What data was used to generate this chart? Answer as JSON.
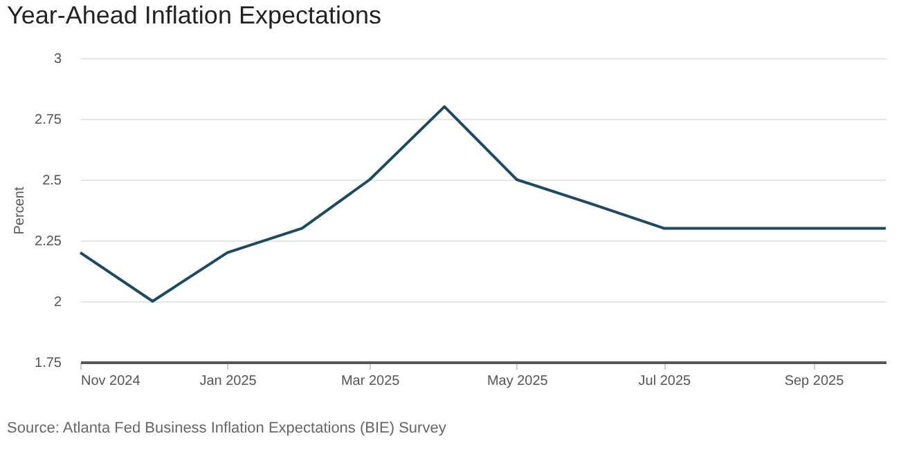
{
  "chart_data": {
    "type": "line",
    "title": "Year-Ahead Inflation Expectations",
    "ylabel": "Percent",
    "annotations": [
      "Source: Atlanta Fed Business Inflation Expectations (BIE) Survey"
    ],
    "x": [
      "2024-11",
      "2024-12",
      "2025-01",
      "2025-02",
      "2025-03",
      "2025-04",
      "2025-05",
      "2025-06",
      "2025-07",
      "2025-08",
      "2025-09",
      "2025-10"
    ],
    "series": [
      {
        "color": "#1b4a62",
        "values": [
          2.2,
          2.0,
          2.2,
          2.3,
          2.5,
          2.8,
          2.5,
          2.4,
          2.3,
          2.3,
          2.3,
          2.3
        ]
      }
    ],
    "xlim": [
      "2024-11",
      "2025-10"
    ],
    "xticks": [
      {
        "value": "2024-11",
        "label": "Nov 2024"
      },
      {
        "value": "2025-01",
        "label": "Jan 2025"
      },
      {
        "value": "2025-03",
        "label": "Mar 2025"
      },
      {
        "value": "2025-05",
        "label": "May 2025"
      },
      {
        "value": "2025-07",
        "label": "Jul 2025"
      },
      {
        "value": "2025-09",
        "label": "Sep 2025"
      }
    ],
    "ylim": [
      1.75,
      3
    ],
    "yticks": [
      1.75,
      2,
      2.25,
      2.5,
      2.75,
      3
    ],
    "grid": "y",
    "legend": false,
    "marker": "none",
    "line_style": "solid"
  }
}
